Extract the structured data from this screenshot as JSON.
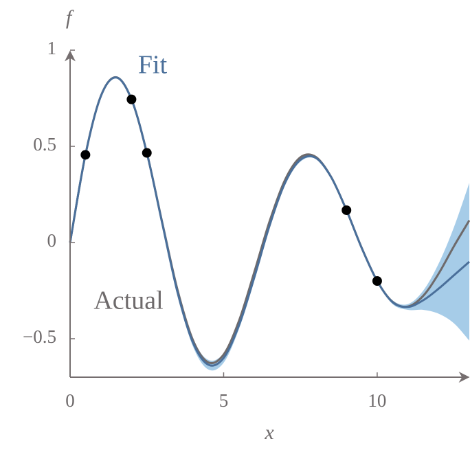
{
  "chart_data": {
    "type": "line",
    "xlabel": "x",
    "ylabel": "f",
    "xlim": [
      0,
      13
    ],
    "ylim": [
      -0.7,
      1
    ],
    "xticks": [
      0,
      5,
      10
    ],
    "yticks": [
      {
        "value": -0.5,
        "label": "−0.5"
      },
      0,
      0.5,
      1
    ],
    "x": [
      0,
      0.5,
      1,
      1.5,
      2,
      2.5,
      3,
      3.5,
      4,
      4.5,
      5,
      5.5,
      6,
      6.5,
      7,
      7.5,
      8,
      8.5,
      9,
      9.5,
      10,
      10.5,
      11,
      11.5,
      12,
      12.5,
      13
    ],
    "band": {
      "color": "#a6cce8",
      "lower": [
        -0.005,
        0.451,
        0.755,
        0.853,
        0.739,
        0.461,
        0.095,
        -0.27,
        -0.54,
        -0.66,
        -0.625,
        -0.45,
        -0.2,
        0.075,
        0.3,
        0.42,
        0.435,
        0.335,
        0.163,
        -0.035,
        -0.205,
        -0.32,
        -0.35,
        -0.35,
        -0.37,
        -0.42,
        -0.51
      ],
      "upper": [
        0.005,
        0.461,
        0.765,
        0.863,
        0.749,
        0.471,
        0.105,
        -0.25,
        -0.5,
        -0.61,
        -0.575,
        -0.41,
        -0.16,
        0.105,
        0.32,
        0.44,
        0.445,
        0.345,
        0.173,
        -0.025,
        -0.195,
        -0.3,
        -0.32,
        -0.25,
        -0.11,
        0.08,
        0.31
      ]
    },
    "series": [
      {
        "name": "Actual",
        "color": "#6e6a6b",
        "values": [
          0,
          0.456,
          0.761,
          0.859,
          0.744,
          0.466,
          0.105,
          -0.247,
          -0.507,
          -0.623,
          -0.582,
          -0.407,
          -0.153,
          0.112,
          0.326,
          0.443,
          0.445,
          0.341,
          0.168,
          -0.029,
          -0.2,
          -0.308,
          -0.333,
          -0.277,
          -0.162,
          -0.019,
          0.115
        ]
      },
      {
        "name": "Fit",
        "color": "#4a6f9a",
        "values": [
          0,
          0.456,
          0.76,
          0.858,
          0.744,
          0.466,
          0.1,
          -0.26,
          -0.52,
          -0.635,
          -0.6,
          -0.43,
          -0.18,
          0.09,
          0.31,
          0.43,
          0.44,
          0.34,
          0.168,
          -0.03,
          -0.2,
          -0.31,
          -0.335,
          -0.3,
          -0.24,
          -0.17,
          -0.1
        ]
      }
    ],
    "points": {
      "color": "#000000",
      "x": [
        0.5,
        2,
        2.5,
        9,
        10
      ],
      "values": [
        0.456,
        0.744,
        0.466,
        0.168,
        -0.2
      ]
    }
  }
}
